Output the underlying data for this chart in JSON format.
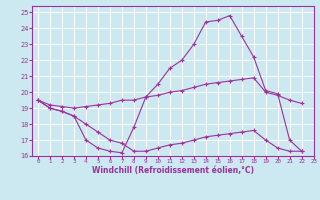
{
  "xlabel": "Windchill (Refroidissement éolien,°C)",
  "bg_color": "#cce8f0",
  "line_color": "#993399",
  "grid_color": "#ffffff",
  "xlim": [
    -0.5,
    23
  ],
  "ylim": [
    16,
    25.4
  ],
  "yticks": [
    16,
    17,
    18,
    19,
    20,
    21,
    22,
    23,
    24,
    25
  ],
  "xticks": [
    0,
    1,
    2,
    3,
    4,
    5,
    6,
    7,
    8,
    9,
    10,
    11,
    12,
    13,
    14,
    15,
    16,
    17,
    18,
    19,
    20,
    21,
    22,
    23
  ],
  "series": [
    [
      19.5,
      19.0,
      18.8,
      18.5,
      17.0,
      16.5,
      16.3,
      16.2,
      17.8,
      19.7,
      20.5,
      21.5,
      22.0,
      23.0,
      24.4,
      24.5,
      24.8,
      23.5,
      22.2,
      20.1,
      19.9,
      17.0,
      16.3
    ],
    [
      19.5,
      19.0,
      18.8,
      18.5,
      18.0,
      17.5,
      17.0,
      16.8,
      16.3,
      16.3,
      16.5,
      16.7,
      16.8,
      17.0,
      17.2,
      17.3,
      17.4,
      17.5,
      17.6,
      17.0,
      16.5,
      16.3,
      16.3
    ],
    [
      19.5,
      19.2,
      19.1,
      19.0,
      19.1,
      19.2,
      19.3,
      19.5,
      19.5,
      19.7,
      19.8,
      20.0,
      20.1,
      20.3,
      20.5,
      20.6,
      20.7,
      20.8,
      20.9,
      20.0,
      19.8,
      19.5,
      19.3
    ]
  ]
}
